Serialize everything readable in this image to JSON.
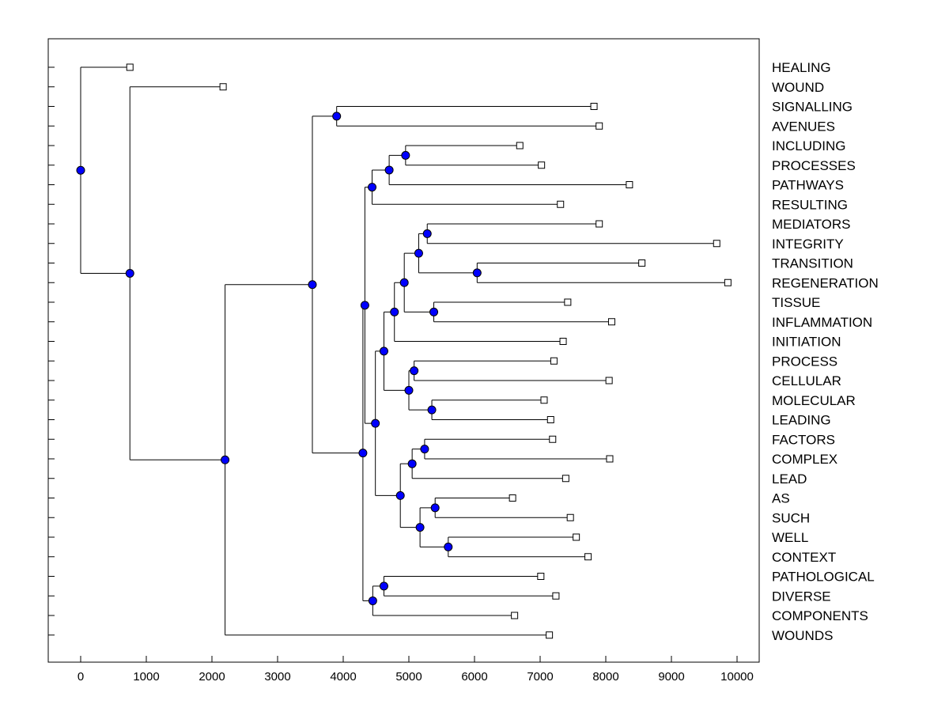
{
  "chart_data": {
    "type": "dendrogram",
    "title": "",
    "xlabel": "",
    "ylabel": "",
    "xlim": [
      -500,
      10300
    ],
    "x_ticks": [
      0,
      1000,
      2000,
      3000,
      4000,
      5000,
      6000,
      7000,
      8000,
      9000,
      10000
    ],
    "x_tick_labels": [
      "0",
      "1000",
      "2000",
      "3000",
      "4000",
      "5000",
      "6000",
      "7000",
      "8000",
      "9000",
      "10000"
    ],
    "grid": false,
    "leaves": [
      {
        "label": "HEALING",
        "value": 750
      },
      {
        "label": "WOUND",
        "value": 2170
      },
      {
        "label": "SIGNALLING",
        "value": 7820
      },
      {
        "label": "AVENUES",
        "value": 7900
      },
      {
        "label": "INCLUDING",
        "value": 6690
      },
      {
        "label": "PROCESSES",
        "value": 7020
      },
      {
        "label": "PATHWAYS",
        "value": 8360
      },
      {
        "label": "RESULTING",
        "value": 7310
      },
      {
        "label": "MEDIATORS",
        "value": 7900
      },
      {
        "label": "INTEGRITY",
        "value": 9690
      },
      {
        "label": "TRANSITION",
        "value": 8550
      },
      {
        "label": "REGENERATION",
        "value": 9860
      },
      {
        "label": "TISSUE",
        "value": 7420
      },
      {
        "label": "INFLAMMATION",
        "value": 8090
      },
      {
        "label": "INITIATION",
        "value": 7350
      },
      {
        "label": "PROCESS",
        "value": 7210
      },
      {
        "label": "CELLULAR",
        "value": 8050
      },
      {
        "label": "MOLECULAR",
        "value": 7060
      },
      {
        "label": "LEADING",
        "value": 7160
      },
      {
        "label": "FACTORS",
        "value": 7190
      },
      {
        "label": "COMPLEX",
        "value": 8060
      },
      {
        "label": "LEAD",
        "value": 7390
      },
      {
        "label": "AS",
        "value": 6580
      },
      {
        "label": "SUCH",
        "value": 7460
      },
      {
        "label": "WELL",
        "value": 7550
      },
      {
        "label": "CONTEXT",
        "value": 7730
      },
      {
        "label": "PATHOLOGICAL",
        "value": 7010
      },
      {
        "label": "DIVERSE",
        "value": 7240
      },
      {
        "label": "COMPONENTS",
        "value": 6610
      },
      {
        "label": "WOUNDS",
        "value": 7140
      }
    ],
    "nodes": [
      {
        "id": "n_inc_proc",
        "value": 4950,
        "children": [
          "L:4",
          "L:5"
        ]
      },
      {
        "id": "n_paths",
        "value": 4700,
        "children": [
          "N:n_inc_proc",
          "L:6"
        ]
      },
      {
        "id": "n_result",
        "value": 4440,
        "children": [
          "N:n_paths",
          "L:7"
        ]
      },
      {
        "id": "n_med_int",
        "value": 5280,
        "children": [
          "L:8",
          "L:9"
        ]
      },
      {
        "id": "n_trans_regen",
        "value": 6040,
        "children": [
          "L:10",
          "L:11"
        ]
      },
      {
        "id": "n_med_trans",
        "value": 5150,
        "children": [
          "N:n_med_int",
          "N:n_trans_regen"
        ]
      },
      {
        "id": "n_tiss_infl",
        "value": 5380,
        "children": [
          "L:12",
          "L:13"
        ]
      },
      {
        "id": "n_mt_ti",
        "value": 4930,
        "children": [
          "N:n_med_trans",
          "N:n_tiss_infl"
        ]
      },
      {
        "id": "n_init",
        "value": 4780,
        "children": [
          "N:n_mt_ti",
          "L:14"
        ]
      },
      {
        "id": "n_proc_cell",
        "value": 5080,
        "children": [
          "L:15",
          "L:16"
        ]
      },
      {
        "id": "n_mol_lead",
        "value": 5350,
        "children": [
          "L:17",
          "L:18"
        ]
      },
      {
        "id": "n_pc_ml",
        "value": 5000,
        "children": [
          "N:n_proc_cell",
          "N:n_mol_lead"
        ]
      },
      {
        "id": "n_grp_a",
        "value": 4620,
        "children": [
          "N:n_init",
          "N:n_pc_ml"
        ]
      },
      {
        "id": "n_fact_comp",
        "value": 5240,
        "children": [
          "L:19",
          "L:20"
        ]
      },
      {
        "id": "n_lead",
        "value": 5050,
        "children": [
          "N:n_fact_comp",
          "L:21"
        ]
      },
      {
        "id": "n_as_such",
        "value": 5400,
        "children": [
          "L:22",
          "L:23"
        ]
      },
      {
        "id": "n_well_ctx",
        "value": 5600,
        "children": [
          "L:24",
          "L:25"
        ]
      },
      {
        "id": "n_as_well",
        "value": 5170,
        "children": [
          "N:n_as_such",
          "N:n_well_ctx"
        ]
      },
      {
        "id": "n_grp_b",
        "value": 4870,
        "children": [
          "N:n_lead",
          "N:n_as_well"
        ]
      },
      {
        "id": "n_ab",
        "value": 4490,
        "children": [
          "N:n_grp_a",
          "N:n_grp_b"
        ]
      },
      {
        "id": "n_big",
        "value": 4330,
        "children": [
          "N:n_result",
          "N:n_ab"
        ]
      },
      {
        "id": "n_path_div",
        "value": 4620,
        "children": [
          "L:26",
          "L:27"
        ]
      },
      {
        "id": "n_comp",
        "value": 4450,
        "children": [
          "N:n_path_div",
          "L:28"
        ]
      },
      {
        "id": "n_big2",
        "value": 4300,
        "children": [
          "N:n_big",
          "N:n_comp"
        ]
      },
      {
        "id": "n_sig_av",
        "value": 3900,
        "children": [
          "L:2",
          "L:3"
        ]
      },
      {
        "id": "n_c1",
        "value": 3530,
        "children": [
          "N:n_sig_av",
          "N:n_big2"
        ]
      },
      {
        "id": "n_c2",
        "value": 2200,
        "children": [
          "N:n_c1",
          "L:29"
        ]
      },
      {
        "id": "n_wound",
        "value": 750,
        "children": [
          "L:1",
          "N:n_c2"
        ]
      },
      {
        "id": "n_root",
        "value": 0,
        "children": [
          "L:0",
          "N:n_wound"
        ]
      }
    ]
  }
}
